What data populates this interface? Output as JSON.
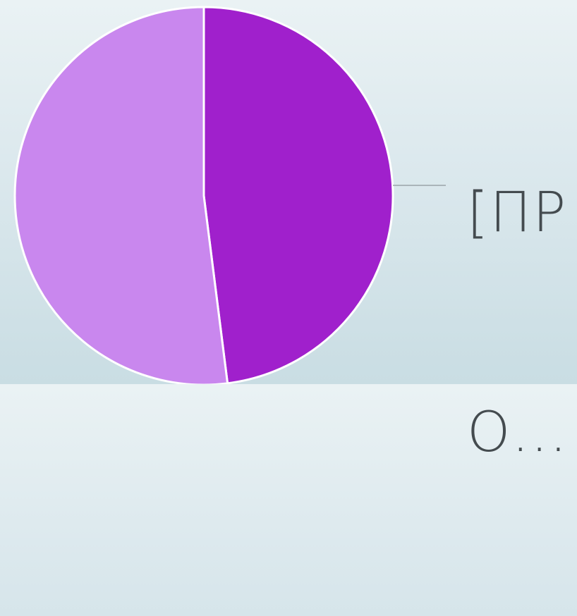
{
  "chart_data": {
    "type": "pie",
    "slices": [
      {
        "value": 48,
        "color": "#a020cc"
      },
      {
        "value": 52,
        "color": "#c987ee"
      }
    ],
    "data_label": [
      "[ПР",
      "О..."
    ],
    "legend": false,
    "slice_border_color": "#ffffff",
    "leader_line_color": "#9aa4a8"
  }
}
